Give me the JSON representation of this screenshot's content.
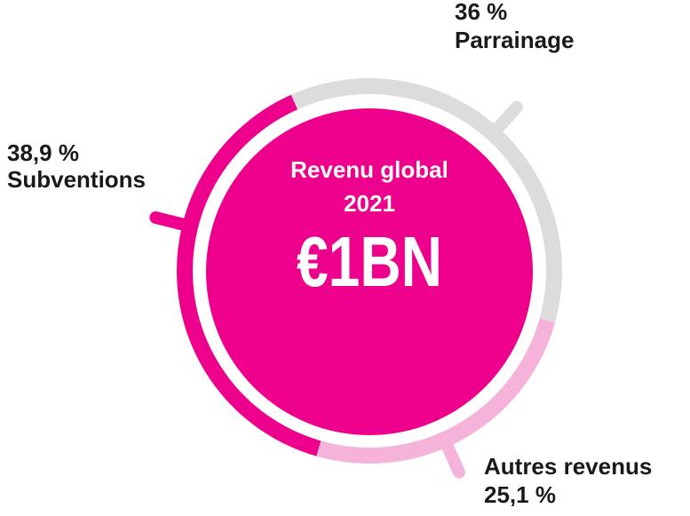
{
  "chart_data": {
    "type": "donut",
    "title": "Revenu global 2021",
    "center_label": "€1BN",
    "categories": [
      "Parrainage",
      "Autres revenus",
      "Subventions"
    ],
    "values": [
      36,
      25.1,
      38.9
    ],
    "value_labels": [
      "36 %",
      "25,1 %",
      "38,9 %"
    ],
    "colors": [
      "#dcdcdc",
      "#f5b3d9",
      "#ec008c"
    ],
    "center_color": "#ec008c"
  }
}
